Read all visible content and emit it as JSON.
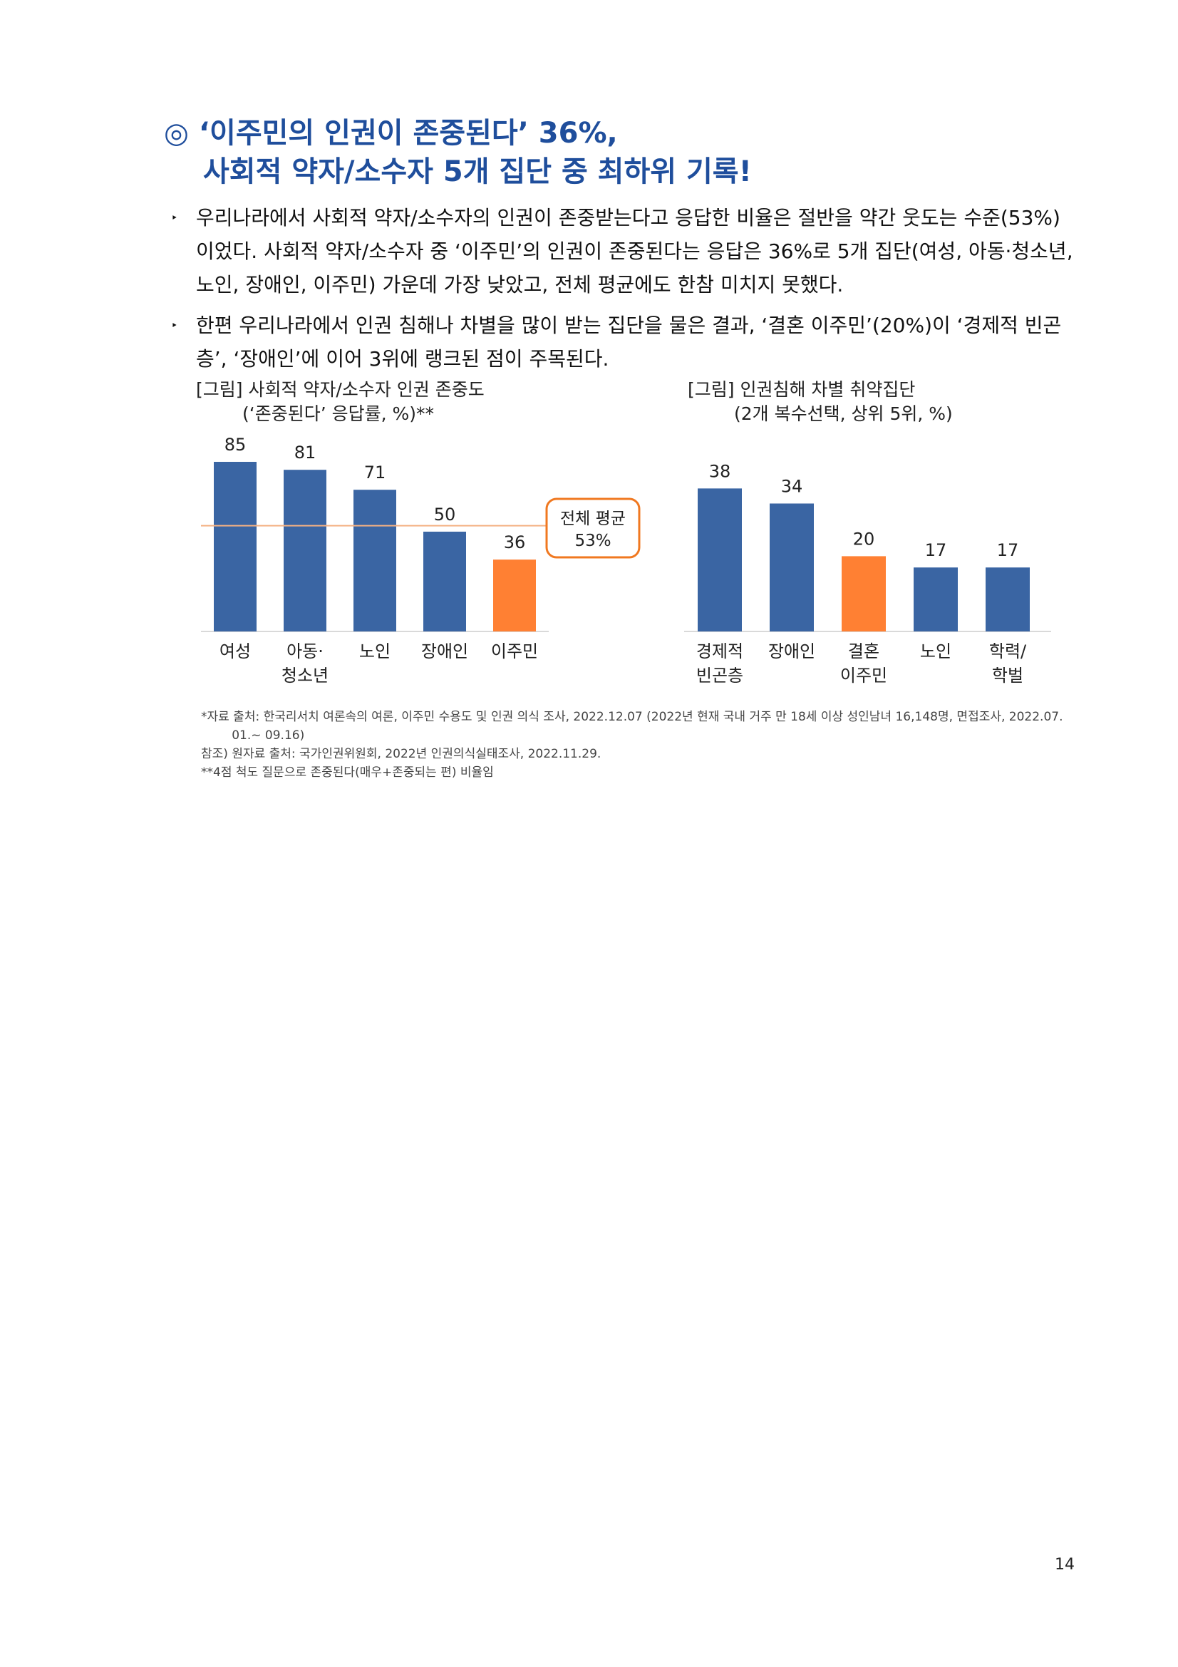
{
  "heading": {
    "line1": "◎ ‘이주민의 인권이 존중된다’ 36%,",
    "line2": "사회적 약자/소수자 5개 집단 중 최하위 기록!"
  },
  "bullets": [
    {
      "marker": "‣",
      "line1": "우리나라에서 사회적 약자/소수자의 인권이 존중받는다고 응답한 비율은 절반을 약간 웃도는 수준(53%)",
      "line2": "이었다. 사회적 약자/소수자 중 ‘이주민’의 인권이 존중된다는 응답은 36%로 5개 집단(여성, 아동·청소년,",
      "line3": "노인, 장애인, 이주민) 가운데 가장 낮았고, 전체 평균에도 한참 미치지 못했다."
    },
    {
      "marker": "‣",
      "line1": "한편 우리나라에서 인권 침해나 차별을 많이 받는 집단을 물은 결과, ‘결혼 이주민’(20%)이 ‘경제적 빈곤",
      "line2": "층’, ‘장애인’에 이어 3위에 랭크된 점이 주목된다."
    }
  ],
  "chart_data": [
    {
      "type": "bar",
      "title": "[그림] 사회적 약자/소수자 인권 존중도",
      "subtitle": "(‘존중된다’ 응답률, %)**",
      "categories": [
        [
          "여성"
        ],
        [
          "아동·",
          "청소년"
        ],
        [
          "노인"
        ],
        [
          "장애인"
        ],
        [
          "이주민"
        ]
      ],
      "values": [
        85,
        81,
        71,
        50,
        36
      ],
      "labels": [
        "85",
        "81",
        "71",
        "50",
        "36"
      ],
      "highlight_index": 4,
      "ylim": [
        0,
        100
      ],
      "reference_line": {
        "value": 53,
        "label_line1": "전체 평균",
        "label_line2": "53%",
        "color": "#f4b183"
      },
      "grid": false
    },
    {
      "type": "bar",
      "title": "[그림] 인권침해 차별 취약집단",
      "subtitle": "(2개 복수선택, 상위 5위, %)",
      "categories": [
        [
          "경제적",
          "빈곤층"
        ],
        [
          "장애인"
        ],
        [
          "결혼",
          "이주민"
        ],
        [
          "노인"
        ],
        [
          "학력/",
          "학벌"
        ]
      ],
      "values": [
        38,
        34,
        20,
        17,
        17
      ],
      "labels": [
        "38",
        "34",
        "20",
        "17",
        "17"
      ],
      "highlight_index": 2,
      "ylim": [
        0,
        44.7
      ],
      "grid": false
    }
  ],
  "colors": {
    "bar": "#3a65a3",
    "highlight": "#ff8033",
    "callout_border": "#f07820",
    "heading": "#1f4e9c"
  },
  "footnotes": [
    "*자료 출처: 한국리서치 여론속의 여론, 이주민 수용도 및 인권 의식 조사, 2022.12.07 (2022년 현재 국내 거주 만 18세 이상 성인남녀 16,148명, 면접조사, 2022.07.",
    "        01.~ 09.16)",
    "참조) 원자료 출처: 국가인권위원회, 2022년 인권의식실태조사, 2022.11.29.",
    "**4점 척도 질문으로 존중된다(매우+존중되는 편) 비율임"
  ],
  "page_number": "14"
}
